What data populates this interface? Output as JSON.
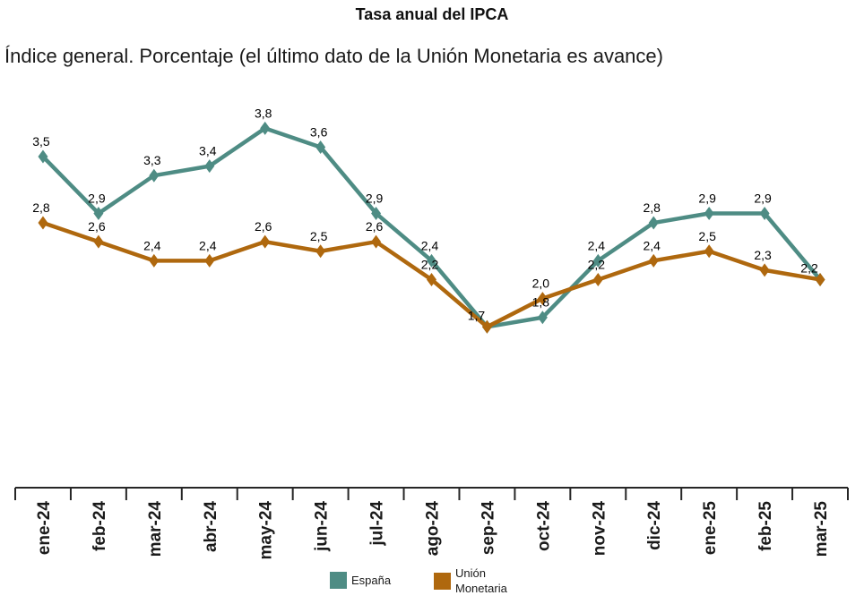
{
  "title": "Tasa anual del IPCA",
  "subtitle": "Índice general. Porcentaje (el último dato de la Unión Monetaria es avance)",
  "legend": {
    "espana_label": "España",
    "union_label": "Unión Monetaria"
  },
  "colors": {
    "espana": "#4E8C84",
    "union_monetaria": "#AF680E",
    "axis": "#262626",
    "data_label": "#000000",
    "axis_label": "#1a1a1a"
  },
  "chart_data": {
    "type": "line",
    "title": "Tasa anual del IPCA",
    "subtitle": "Índice general. Porcentaje (el último dato de la Unión Monetaria es avance)",
    "categories": [
      "ene-24",
      "feb-24",
      "mar-24",
      "abr-24",
      "may-24",
      "jun-24",
      "jul-24",
      "ago-24",
      "sep-24",
      "oct-24",
      "nov-24",
      "dic-24",
      "ene-25",
      "feb-25",
      "mar-25"
    ],
    "series": [
      {
        "name": "España",
        "color": "#4E8C84",
        "marker": "diamond",
        "values": [
          3.5,
          2.9,
          3.3,
          3.4,
          3.8,
          3.6,
          2.9,
          2.4,
          1.7,
          1.8,
          2.4,
          2.8,
          2.9,
          2.9,
          2.2
        ]
      },
      {
        "name": "Unión Monetaria",
        "color": "#AF680E",
        "marker": "diamond",
        "values": [
          2.8,
          2.6,
          2.4,
          2.4,
          2.6,
          2.5,
          2.6,
          2.2,
          1.7,
          2.0,
          2.2,
          2.4,
          2.5,
          2.3,
          2.2
        ]
      }
    ],
    "decimal_separator": ",",
    "data_labels_visible": true,
    "y_axis_visible": false,
    "grid": false,
    "ylim": [
      0,
      4.2
    ],
    "legend_position": "bottom"
  }
}
